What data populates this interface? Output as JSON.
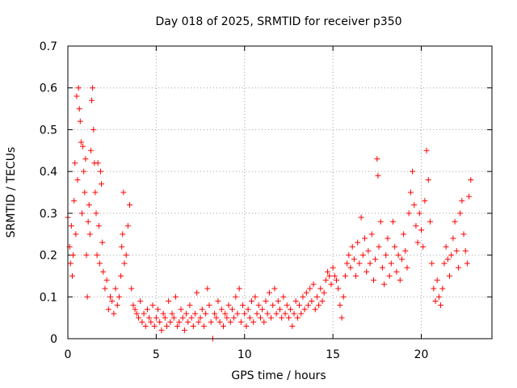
{
  "chart_data": {
    "type": "scatter",
    "title": "Day 018 of 2025, SRMTID for receiver p350",
    "xlabel": "GPS time / hours",
    "ylabel": "SRMTID / TECUs",
    "xlim": [
      0,
      24
    ],
    "ylim": [
      0,
      0.7
    ],
    "xticks": [
      0,
      5,
      10,
      15,
      20
    ],
    "yticks": [
      0,
      0.1,
      0.2,
      0.3,
      0.4,
      0.5,
      0.6,
      0.7
    ],
    "xtick_labels": [
      "0",
      "5",
      "10",
      "15",
      "20"
    ],
    "ytick_labels": [
      "0",
      "0.1",
      "0.2",
      "0.3",
      "0.4",
      "0.5",
      "0.6",
      "0.7"
    ],
    "grid": true,
    "marker": "plus",
    "color": "#ff0000",
    "series": [
      {
        "name": "p350",
        "points": [
          [
            0.0,
            0.29
          ],
          [
            0.1,
            0.22
          ],
          [
            0.15,
            0.18
          ],
          [
            0.2,
            0.27
          ],
          [
            0.25,
            0.15
          ],
          [
            0.3,
            0.2
          ],
          [
            0.35,
            0.33
          ],
          [
            0.4,
            0.42
          ],
          [
            0.45,
            0.25
          ],
          [
            0.5,
            0.58
          ],
          [
            0.55,
            0.38
          ],
          [
            0.6,
            0.6
          ],
          [
            0.65,
            0.55
          ],
          [
            0.7,
            0.52
          ],
          [
            0.75,
            0.47
          ],
          [
            0.8,
            0.3
          ],
          [
            0.85,
            0.46
          ],
          [
            0.9,
            0.4
          ],
          [
            0.95,
            0.35
          ],
          [
            1.0,
            0.43
          ],
          [
            1.05,
            0.2
          ],
          [
            1.1,
            0.1
          ],
          [
            1.15,
            0.28
          ],
          [
            1.2,
            0.32
          ],
          [
            1.25,
            0.25
          ],
          [
            1.3,
            0.45
          ],
          [
            1.35,
            0.57
          ],
          [
            1.4,
            0.6
          ],
          [
            1.45,
            0.5
          ],
          [
            1.5,
            0.42
          ],
          [
            1.55,
            0.35
          ],
          [
            1.6,
            0.3
          ],
          [
            1.65,
            0.2
          ],
          [
            1.7,
            0.42
          ],
          [
            1.75,
            0.27
          ],
          [
            1.8,
            0.18
          ],
          [
            1.85,
            0.4
          ],
          [
            1.9,
            0.37
          ],
          [
            1.95,
            0.23
          ],
          [
            2.0,
            0.16
          ],
          [
            2.1,
            0.12
          ],
          [
            2.2,
            0.14
          ],
          [
            2.3,
            0.07
          ],
          [
            2.4,
            0.1
          ],
          [
            2.5,
            0.09
          ],
          [
            2.6,
            0.06
          ],
          [
            2.7,
            0.12
          ],
          [
            2.8,
            0.08
          ],
          [
            2.9,
            0.1
          ],
          [
            3.0,
            0.15
          ],
          [
            3.05,
            0.22
          ],
          [
            3.1,
            0.25
          ],
          [
            3.15,
            0.35
          ],
          [
            3.2,
            0.18
          ],
          [
            3.3,
            0.2
          ],
          [
            3.4,
            0.27
          ],
          [
            3.5,
            0.32
          ],
          [
            3.6,
            0.12
          ],
          [
            3.7,
            0.08
          ],
          [
            3.8,
            0.07
          ],
          [
            3.9,
            0.06
          ],
          [
            4.0,
            0.05
          ],
          [
            4.1,
            0.09
          ],
          [
            4.2,
            0.04
          ],
          [
            4.3,
            0.06
          ],
          [
            4.4,
            0.03
          ],
          [
            4.5,
            0.07
          ],
          [
            4.6,
            0.05
          ],
          [
            4.7,
            0.04
          ],
          [
            4.8,
            0.08
          ],
          [
            4.9,
            0.03
          ],
          [
            5.0,
            0.05
          ],
          [
            5.1,
            0.07
          ],
          [
            5.2,
            0.04
          ],
          [
            5.3,
            0.02
          ],
          [
            5.4,
            0.06
          ],
          [
            5.5,
            0.05
          ],
          [
            5.6,
            0.03
          ],
          [
            5.7,
            0.09
          ],
          [
            5.8,
            0.04
          ],
          [
            5.9,
            0.06
          ],
          [
            6.0,
            0.05
          ],
          [
            6.1,
            0.1
          ],
          [
            6.2,
            0.03
          ],
          [
            6.3,
            0.04
          ],
          [
            6.4,
            0.07
          ],
          [
            6.5,
            0.05
          ],
          [
            6.6,
            0.02
          ],
          [
            6.7,
            0.06
          ],
          [
            6.8,
            0.04
          ],
          [
            6.9,
            0.08
          ],
          [
            7.0,
            0.05
          ],
          [
            7.1,
            0.03
          ],
          [
            7.2,
            0.06
          ],
          [
            7.3,
            0.11
          ],
          [
            7.4,
            0.04
          ],
          [
            7.5,
            0.05
          ],
          [
            7.6,
            0.07
          ],
          [
            7.7,
            0.03
          ],
          [
            7.8,
            0.06
          ],
          [
            7.9,
            0.12
          ],
          [
            8.0,
            0.08
          ],
          [
            8.1,
            0.04
          ],
          [
            8.2,
            0.0
          ],
          [
            8.3,
            0.06
          ],
          [
            8.4,
            0.05
          ],
          [
            8.5,
            0.09
          ],
          [
            8.6,
            0.04
          ],
          [
            8.7,
            0.07
          ],
          [
            8.8,
            0.03
          ],
          [
            8.9,
            0.06
          ],
          [
            9.0,
            0.05
          ],
          [
            9.1,
            0.08
          ],
          [
            9.2,
            0.04
          ],
          [
            9.3,
            0.07
          ],
          [
            9.4,
            0.05
          ],
          [
            9.5,
            0.1
          ],
          [
            9.6,
            0.06
          ],
          [
            9.7,
            0.12
          ],
          [
            9.8,
            0.04
          ],
          [
            9.9,
            0.08
          ],
          [
            10.0,
            0.06
          ],
          [
            10.1,
            0.03
          ],
          [
            10.2,
            0.07
          ],
          [
            10.3,
            0.05
          ],
          [
            10.4,
            0.09
          ],
          [
            10.5,
            0.04
          ],
          [
            10.6,
            0.1
          ],
          [
            10.7,
            0.06
          ],
          [
            10.8,
            0.08
          ],
          [
            10.9,
            0.05
          ],
          [
            11.0,
            0.07
          ],
          [
            11.1,
            0.04
          ],
          [
            11.2,
            0.09
          ],
          [
            11.3,
            0.06
          ],
          [
            11.4,
            0.11
          ],
          [
            11.5,
            0.05
          ],
          [
            11.6,
            0.08
          ],
          [
            11.7,
            0.12
          ],
          [
            11.8,
            0.06
          ],
          [
            11.9,
            0.09
          ],
          [
            12.0,
            0.07
          ],
          [
            12.1,
            0.05
          ],
          [
            12.2,
            0.1
          ],
          [
            12.3,
            0.06
          ],
          [
            12.4,
            0.08
          ],
          [
            12.5,
            0.05
          ],
          [
            12.6,
            0.07
          ],
          [
            12.7,
            0.03
          ],
          [
            12.8,
            0.06
          ],
          [
            12.9,
            0.09
          ],
          [
            13.0,
            0.05
          ],
          [
            13.1,
            0.08
          ],
          [
            13.2,
            0.06
          ],
          [
            13.3,
            0.1
          ],
          [
            13.4,
            0.07
          ],
          [
            13.5,
            0.11
          ],
          [
            13.6,
            0.08
          ],
          [
            13.7,
            0.12
          ],
          [
            13.8,
            0.09
          ],
          [
            13.9,
            0.13
          ],
          [
            14.0,
            0.07
          ],
          [
            14.1,
            0.1
          ],
          [
            14.2,
            0.08
          ],
          [
            14.3,
            0.12
          ],
          [
            14.4,
            0.09
          ],
          [
            14.5,
            0.11
          ],
          [
            14.6,
            0.14
          ],
          [
            14.7,
            0.16
          ],
          [
            14.8,
            0.15
          ],
          [
            14.9,
            0.13
          ],
          [
            15.0,
            0.17
          ],
          [
            15.1,
            0.15
          ],
          [
            15.2,
            0.14
          ],
          [
            15.3,
            0.12
          ],
          [
            15.4,
            0.08
          ],
          [
            15.5,
            0.05
          ],
          [
            15.6,
            0.1
          ],
          [
            15.7,
            0.15
          ],
          [
            15.8,
            0.18
          ],
          [
            15.9,
            0.2
          ],
          [
            16.0,
            0.17
          ],
          [
            16.1,
            0.22
          ],
          [
            16.2,
            0.19
          ],
          [
            16.3,
            0.15
          ],
          [
            16.4,
            0.23
          ],
          [
            16.5,
            0.18
          ],
          [
            16.6,
            0.29
          ],
          [
            16.7,
            0.2
          ],
          [
            16.8,
            0.24
          ],
          [
            16.9,
            0.16
          ],
          [
            17.0,
            0.21
          ],
          [
            17.1,
            0.18
          ],
          [
            17.2,
            0.25
          ],
          [
            17.3,
            0.14
          ],
          [
            17.4,
            0.19
          ],
          [
            17.5,
            0.43
          ],
          [
            17.55,
            0.39
          ],
          [
            17.6,
            0.22
          ],
          [
            17.7,
            0.28
          ],
          [
            17.8,
            0.17
          ],
          [
            17.9,
            0.13
          ],
          [
            18.0,
            0.2
          ],
          [
            18.1,
            0.24
          ],
          [
            18.2,
            0.15
          ],
          [
            18.3,
            0.18
          ],
          [
            18.4,
            0.28
          ],
          [
            18.5,
            0.22
          ],
          [
            18.6,
            0.16
          ],
          [
            18.7,
            0.2
          ],
          [
            18.8,
            0.14
          ],
          [
            18.9,
            0.19
          ],
          [
            19.0,
            0.25
          ],
          [
            19.1,
            0.21
          ],
          [
            19.2,
            0.17
          ],
          [
            19.3,
            0.3
          ],
          [
            19.4,
            0.35
          ],
          [
            19.5,
            0.4
          ],
          [
            19.6,
            0.32
          ],
          [
            19.7,
            0.27
          ],
          [
            19.8,
            0.23
          ],
          [
            19.9,
            0.3
          ],
          [
            20.0,
            0.26
          ],
          [
            20.1,
            0.22
          ],
          [
            20.2,
            0.33
          ],
          [
            20.3,
            0.45
          ],
          [
            20.4,
            0.38
          ],
          [
            20.5,
            0.28
          ],
          [
            20.6,
            0.18
          ],
          [
            20.7,
            0.12
          ],
          [
            20.8,
            0.09
          ],
          [
            20.9,
            0.14
          ],
          [
            21.0,
            0.1
          ],
          [
            21.1,
            0.08
          ],
          [
            21.2,
            0.12
          ],
          [
            21.3,
            0.18
          ],
          [
            21.4,
            0.22
          ],
          [
            21.5,
            0.19
          ],
          [
            21.6,
            0.15
          ],
          [
            21.7,
            0.2
          ],
          [
            21.8,
            0.24
          ],
          [
            21.9,
            0.28
          ],
          [
            22.0,
            0.21
          ],
          [
            22.1,
            0.17
          ],
          [
            22.2,
            0.3
          ],
          [
            22.3,
            0.33
          ],
          [
            22.4,
            0.25
          ],
          [
            22.5,
            0.21
          ],
          [
            22.6,
            0.18
          ],
          [
            22.7,
            0.34
          ],
          [
            22.8,
            0.38
          ]
        ]
      }
    ]
  }
}
